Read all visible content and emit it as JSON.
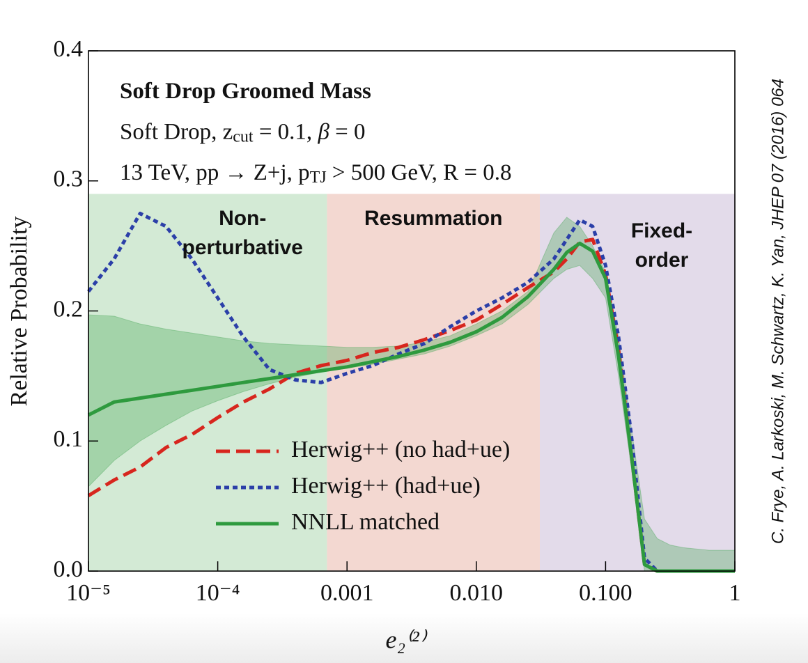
{
  "chart_data": {
    "type": "line",
    "annotations": [
      {
        "bold": true,
        "parts": [
          {
            "text": "Soft Drop Groomed Mass"
          }
        ]
      },
      {
        "parts": [
          {
            "text": "Soft Drop, z"
          },
          {
            "text": "cut",
            "sub": true
          },
          {
            "text": " = 0.1, "
          },
          {
            "text": "β",
            "italic": true
          },
          {
            "text": " = 0"
          }
        ]
      },
      {
        "parts": [
          {
            "text": "13 TeV, pp → Z+j, p"
          },
          {
            "text": "TJ",
            "sub": true
          },
          {
            "text": " > 500 GeV, R = 0.8"
          }
        ]
      }
    ],
    "xlabel": "e₂⁽²⁾",
    "ylabel": "Relative Probability",
    "citation": "C. Frye, A. Larkoski, M. Schwartz, K. Yan, JHEP 07 (2016) 064",
    "xscale": "log",
    "xlim": [
      1e-05,
      1
    ],
    "ylim": [
      0,
      0.4
    ],
    "xticks": [
      {
        "value": 1e-05,
        "label": "10⁻⁵"
      },
      {
        "value": 0.0001,
        "label": "10⁻⁴"
      },
      0.001,
      {
        "value": 0.01,
        "label": "0.010"
      },
      {
        "value": 0.1,
        "label": "0.100"
      },
      1
    ],
    "yticks": [
      {
        "value": 0,
        "label": "0.0"
      },
      0.1,
      0.2,
      0.3,
      0.4
    ],
    "regions": [
      {
        "label": [
          "Non-",
          "perturbative"
        ],
        "from": 1e-05,
        "to": 0.0007,
        "top": 0.29,
        "color": "#d3ead5",
        "text_color": "#2e9a3e"
      },
      {
        "label": [
          "Resummation"
        ],
        "from": 0.0007,
        "to": 0.031,
        "top": 0.29,
        "color": "#f3d8d1",
        "text_color": "#9b1c1c"
      },
      {
        "label": [
          "Fixed-",
          "order"
        ],
        "from": 0.031,
        "to": 1,
        "top": 0.29,
        "color": "#e3dbea",
        "text_color": "#5b2d8e"
      }
    ],
    "x": [
      1e-05,
      1.58e-05,
      2.51e-05,
      3.98e-05,
      6.31e-05,
      0.0001,
      0.000158,
      0.000251,
      0.000398,
      0.000631,
      0.001,
      0.00158,
      0.00251,
      0.00398,
      0.00631,
      0.01,
      0.0158,
      0.0251,
      0.0398,
      0.0501,
      0.0631,
      0.0794,
      0.1,
      0.126,
      0.158,
      0.2,
      0.251,
      0.316,
      0.398,
      0.631,
      1
    ],
    "series": [
      {
        "name": "Herwig++ (no had+ue)",
        "color": "#d7261e",
        "dash": "dashed",
        "values": [
          0.058,
          0.07,
          0.08,
          0.095,
          0.105,
          0.118,
          0.13,
          0.14,
          0.152,
          0.158,
          0.162,
          0.168,
          0.172,
          0.178,
          0.185,
          0.193,
          0.205,
          0.218,
          0.23,
          0.24,
          0.253,
          0.255,
          0.228,
          0.17,
          0.09,
          0.005,
          0,
          0,
          0,
          0,
          0
        ]
      },
      {
        "name": "Herwig++ (had+ue)",
        "color": "#2b3fa8",
        "dash": "dotted",
        "values": [
          0.215,
          0.24,
          0.275,
          0.265,
          0.24,
          0.21,
          0.18,
          0.155,
          0.147,
          0.145,
          0.152,
          0.158,
          0.167,
          0.175,
          0.188,
          0.2,
          0.21,
          0.222,
          0.24,
          0.255,
          0.27,
          0.265,
          0.235,
          0.18,
          0.105,
          0.01,
          0,
          0,
          0,
          0,
          0
        ]
      },
      {
        "name": "NNLL matched",
        "color": "#2e9a3e",
        "dash": "solid",
        "values": [
          0.12,
          0.13,
          0.133,
          0.136,
          0.139,
          0.142,
          0.145,
          0.148,
          0.151,
          0.154,
          0.157,
          0.161,
          0.165,
          0.17,
          0.176,
          0.184,
          0.195,
          0.211,
          0.232,
          0.245,
          0.252,
          0.246,
          0.225,
          0.165,
          0.09,
          0.005,
          0,
          0,
          0,
          0,
          0
        ],
        "band": {
          "color": "#4aa85a",
          "upper": [
            0.197,
            0.196,
            0.19,
            0.186,
            0.183,
            0.18,
            0.177,
            0.175,
            0.174,
            0.173,
            0.172,
            0.172,
            0.173,
            0.176,
            0.181,
            0.19,
            0.2,
            0.215,
            0.26,
            0.272,
            0.265,
            0.25,
            0.23,
            0.18,
            0.11,
            0.04,
            0.025,
            0.02,
            0.018,
            0.016,
            0.016
          ],
          "lower": [
            0.065,
            0.085,
            0.1,
            0.112,
            0.123,
            0.131,
            0.138,
            0.144,
            0.149,
            0.153,
            0.156,
            0.159,
            0.163,
            0.167,
            0.173,
            0.181,
            0.19,
            0.205,
            0.225,
            0.232,
            0.235,
            0.225,
            0.21,
            0.15,
            0.08,
            0,
            0,
            0,
            0,
            0,
            0
          ]
        }
      }
    ]
  }
}
